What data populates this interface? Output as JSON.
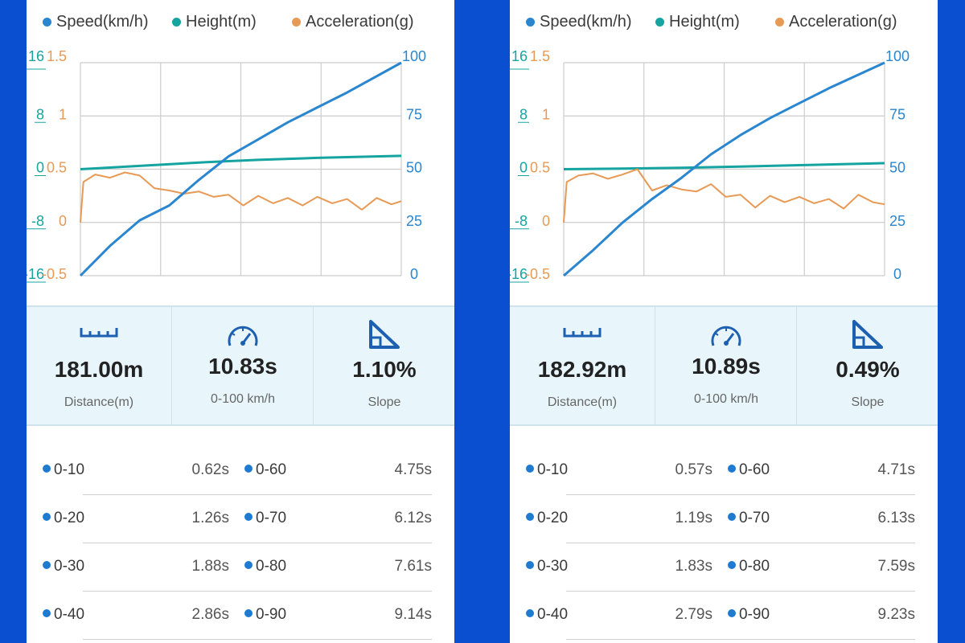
{
  "colors": {
    "speed": "#2a86cf",
    "height": "#16a4a0",
    "accel": "#e79a55",
    "frame_bg": "#0b4fd1",
    "split_dot": "#1e7bd0"
  },
  "legend": {
    "speed": "Speed(km/h)",
    "height": "Height(m)",
    "accel": "Acceleration(g)"
  },
  "axes": {
    "height_ticks": [
      "16",
      "8",
      "0",
      "-8",
      "-16"
    ],
    "accel_ticks": [
      "1.5",
      "1",
      "0.5",
      "0",
      "-0.5"
    ],
    "speed_ticks": [
      "100",
      "75",
      "50",
      "25",
      "0"
    ]
  },
  "icons": {
    "distance": "ruler-icon",
    "time": "speedometer-icon",
    "slope": "slope-icon"
  },
  "panels": [
    {
      "summary": {
        "distance_value": "181.00m",
        "distance_label": "Distance(m)",
        "time_value": "10.83s",
        "time_label": "0-100 km/h",
        "slope_value": "1.10%",
        "slope_label": "Slope"
      },
      "splits": [
        {
          "left_label": "0-10",
          "left_time": "0.62s",
          "right_label": "0-60",
          "right_time": "4.75s"
        },
        {
          "left_label": "0-20",
          "left_time": "1.26s",
          "right_label": "0-70",
          "right_time": "6.12s"
        },
        {
          "left_label": "0-30",
          "left_time": "1.88s",
          "right_label": "0-80",
          "right_time": "7.61s"
        },
        {
          "left_label": "0-40",
          "left_time": "2.86s",
          "right_label": "0-90",
          "right_time": "9.14s"
        }
      ]
    },
    {
      "summary": {
        "distance_value": "182.92m",
        "distance_label": "Distance(m)",
        "time_value": "10.89s",
        "time_label": "0-100 km/h",
        "slope_value": "0.49%",
        "slope_label": "Slope"
      },
      "splits": [
        {
          "left_label": "0-10",
          "left_time": "0.57s",
          "right_label": "0-60",
          "right_time": "4.71s"
        },
        {
          "left_label": "0-20",
          "left_time": "1.19s",
          "right_label": "0-70",
          "right_time": "6.13s"
        },
        {
          "left_label": "0-30",
          "left_time": "1.83s",
          "right_label": "0-80",
          "right_time": "7.59s"
        },
        {
          "left_label": "0-40",
          "left_time": "2.79s",
          "right_label": "0-90",
          "right_time": "9.23s"
        }
      ]
    }
  ],
  "chart_data": [
    {
      "type": "line",
      "x_range": [
        0,
        10.83
      ],
      "grid": true,
      "legend_position": "top",
      "series": [
        {
          "name": "Speed(km/h)",
          "axis": "speed",
          "x": [
            0,
            1,
            2,
            3,
            4,
            5,
            6,
            7,
            8,
            9,
            10.83
          ],
          "values": [
            0,
            14,
            26,
            33,
            45,
            56,
            64,
            72,
            79,
            86,
            100
          ]
        },
        {
          "name": "Height(m)",
          "axis": "height",
          "x": [
            0,
            2,
            4,
            6,
            8,
            10.83
          ],
          "values": [
            0,
            0.5,
            1.0,
            1.4,
            1.7,
            2.0
          ]
        },
        {
          "name": "Acceleration(g)",
          "axis": "accel",
          "x": [
            0,
            0.1,
            0.5,
            1,
            1.5,
            2,
            2.5,
            3,
            3.5,
            4,
            4.5,
            5,
            5.5,
            6,
            6.5,
            7,
            7.5,
            8,
            8.5,
            9,
            9.5,
            10,
            10.5,
            10.83
          ],
          "values": [
            0,
            0.38,
            0.45,
            0.42,
            0.47,
            0.44,
            0.32,
            0.3,
            0.27,
            0.29,
            0.24,
            0.26,
            0.16,
            0.25,
            0.18,
            0.23,
            0.16,
            0.24,
            0.18,
            0.22,
            0.12,
            0.23,
            0.17,
            0.2
          ]
        }
      ],
      "axes": {
        "height": {
          "ticks": [
            16,
            8,
            0,
            -8,
            -16
          ],
          "range": [
            -16,
            16
          ]
        },
        "accel": {
          "ticks": [
            1.5,
            1,
            0.5,
            0,
            -0.5
          ],
          "range": [
            -0.5,
            1.5
          ]
        },
        "speed": {
          "ticks": [
            100,
            75,
            50,
            25,
            0
          ],
          "range": [
            0,
            100
          ]
        }
      }
    },
    {
      "type": "line",
      "x_range": [
        0,
        10.89
      ],
      "grid": true,
      "legend_position": "top",
      "series": [
        {
          "name": "Speed(km/h)",
          "axis": "speed",
          "x": [
            0,
            1,
            2,
            3,
            4,
            5,
            6,
            7,
            8,
            9,
            10.89
          ],
          "values": [
            0,
            12,
            25,
            36,
            46,
            57,
            66,
            74,
            81,
            88,
            100
          ]
        },
        {
          "name": "Height(m)",
          "axis": "height",
          "x": [
            0,
            2,
            4,
            6,
            8,
            10.89
          ],
          "values": [
            0,
            0.1,
            0.2,
            0.4,
            0.6,
            0.9
          ]
        },
        {
          "name": "Acceleration(g)",
          "axis": "accel",
          "x": [
            0,
            0.1,
            0.5,
            1,
            1.5,
            2,
            2.5,
            3,
            3.5,
            4,
            4.5,
            5,
            5.5,
            6,
            6.5,
            7,
            7.5,
            8,
            8.5,
            9,
            9.5,
            10,
            10.5,
            10.89
          ],
          "values": [
            0,
            0.38,
            0.44,
            0.46,
            0.41,
            0.45,
            0.5,
            0.3,
            0.35,
            0.31,
            0.29,
            0.36,
            0.24,
            0.26,
            0.14,
            0.25,
            0.19,
            0.24,
            0.18,
            0.22,
            0.13,
            0.26,
            0.19,
            0.17
          ]
        }
      ],
      "axes": {
        "height": {
          "ticks": [
            16,
            8,
            0,
            -8,
            -16
          ],
          "range": [
            -16,
            16
          ]
        },
        "accel": {
          "ticks": [
            1.5,
            1,
            0.5,
            0,
            -0.5
          ],
          "range": [
            -0.5,
            1.5
          ]
        },
        "speed": {
          "ticks": [
            100,
            75,
            50,
            25,
            0
          ],
          "range": [
            0,
            100
          ]
        }
      }
    }
  ]
}
